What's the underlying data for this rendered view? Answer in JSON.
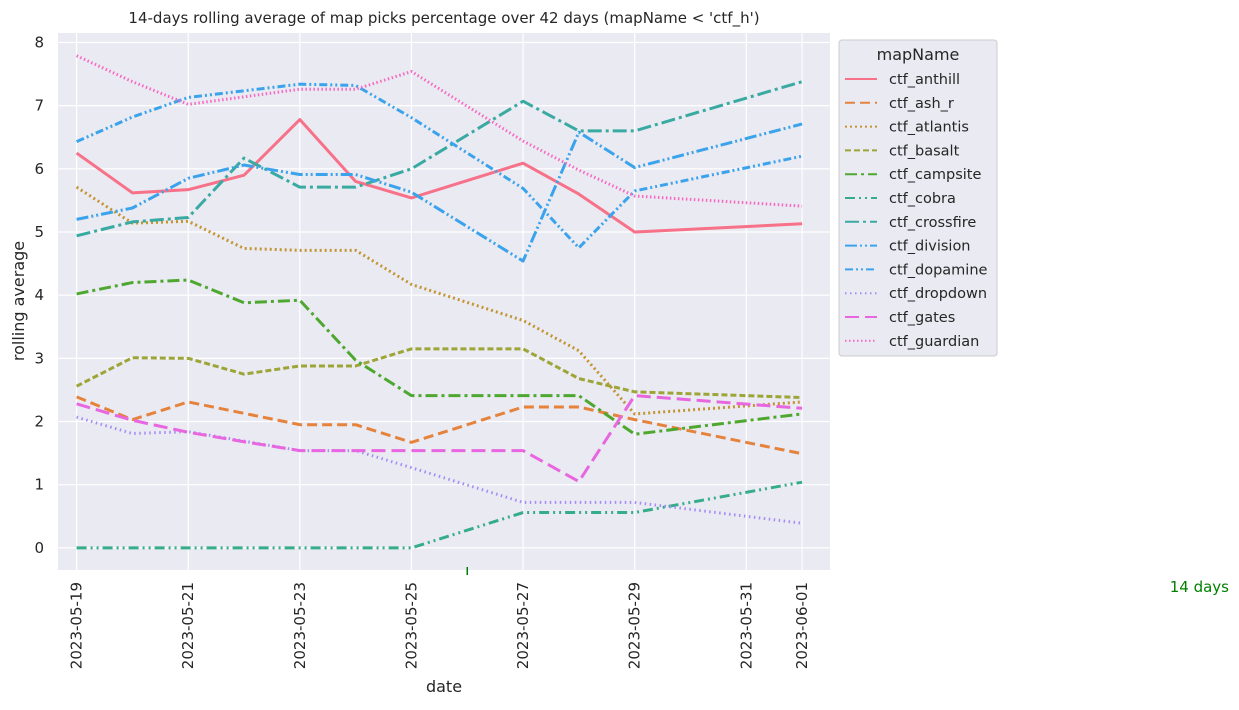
{
  "chart_data": {
    "type": "line",
    "title": "14-days rolling average of map picks percentage over 42 days (mapName < 'ctf_h')",
    "xlabel": "date",
    "ylabel": "rolling average",
    "ylim": [
      -0.35,
      8.15
    ],
    "xlim": [
      "2023-05-18T16:00",
      "2023-06-01T12:00"
    ],
    "yticks": [
      0,
      1,
      2,
      3,
      4,
      5,
      6,
      7,
      8
    ],
    "xticks": [
      "2023-05-19",
      "2023-05-21",
      "2023-05-23",
      "2023-05-25",
      "2023-05-27",
      "2023-05-29",
      "2023-05-31",
      "2023-06-01"
    ],
    "grid": true,
    "style": "seaborn-darkgrid",
    "legend": {
      "title": "mapName",
      "placement": "outside-right-top"
    },
    "annotation": {
      "text": "14 days",
      "color": "#008000",
      "marker_date": "2023-05-26"
    },
    "series": [
      {
        "name": "ctf_anthill",
        "color": "#f77189",
        "dash": "solid",
        "points": [
          [
            "2023-05-19",
            6.25
          ],
          [
            "2023-05-20",
            5.62
          ],
          [
            "2023-05-21",
            5.67
          ],
          [
            "2023-05-22",
            5.9
          ],
          [
            "2023-05-23",
            6.78
          ],
          [
            "2023-05-24",
            5.8
          ],
          [
            "2023-05-25",
            5.54
          ],
          [
            "2023-05-27",
            6.09
          ],
          [
            "2023-05-28",
            5.6
          ],
          [
            "2023-05-29",
            5.0
          ],
          [
            "2023-06-01",
            5.13
          ]
        ]
      },
      {
        "name": "ctf_ash_r",
        "color": "#e5823c",
        "dash": "dashed",
        "points": [
          [
            "2023-05-19",
            2.39
          ],
          [
            "2023-05-20",
            2.03
          ],
          [
            "2023-05-21",
            2.31
          ],
          [
            "2023-05-23",
            1.95
          ],
          [
            "2023-05-24",
            1.95
          ],
          [
            "2023-05-25",
            1.67
          ],
          [
            "2023-05-27",
            2.23
          ],
          [
            "2023-05-28",
            2.23
          ],
          [
            "2023-05-29",
            2.03
          ],
          [
            "2023-06-01",
            1.49
          ]
        ]
      },
      {
        "name": "ctf_atlantis",
        "color": "#c39532",
        "dash": "dotted",
        "points": [
          [
            "2023-05-19",
            5.71
          ],
          [
            "2023-05-20",
            5.14
          ],
          [
            "2023-05-21",
            5.17
          ],
          [
            "2023-05-22",
            4.74
          ],
          [
            "2023-05-23",
            4.71
          ],
          [
            "2023-05-24",
            4.71
          ],
          [
            "2023-05-25",
            4.17
          ],
          [
            "2023-05-27",
            3.6
          ],
          [
            "2023-05-28",
            3.12
          ],
          [
            "2023-05-29",
            2.12
          ],
          [
            "2023-06-01",
            2.31
          ]
        ]
      },
      {
        "name": "ctf_basalt",
        "color": "#9ea537",
        "dash": "densely-dashed",
        "points": [
          [
            "2023-05-19",
            2.56
          ],
          [
            "2023-05-20",
            3.01
          ],
          [
            "2023-05-21",
            3.0
          ],
          [
            "2023-05-22",
            2.75
          ],
          [
            "2023-05-23",
            2.88
          ],
          [
            "2023-05-24",
            2.88
          ],
          [
            "2023-05-25",
            3.15
          ],
          [
            "2023-05-27",
            3.15
          ],
          [
            "2023-05-28",
            2.68
          ],
          [
            "2023-05-29",
            2.47
          ],
          [
            "2023-06-01",
            2.38
          ]
        ]
      },
      {
        "name": "ctf_campsite",
        "color": "#4ea830",
        "dash": "dashdot",
        "points": [
          [
            "2023-05-19",
            4.02
          ],
          [
            "2023-05-20",
            4.2
          ],
          [
            "2023-05-21",
            4.24
          ],
          [
            "2023-05-22",
            3.88
          ],
          [
            "2023-05-23",
            3.92
          ],
          [
            "2023-05-24",
            2.97
          ],
          [
            "2023-05-25",
            2.41
          ],
          [
            "2023-05-27",
            2.41
          ],
          [
            "2023-05-28",
            2.41
          ],
          [
            "2023-05-29",
            1.8
          ],
          [
            "2023-06-01",
            2.12
          ]
        ]
      },
      {
        "name": "ctf_cobra",
        "color": "#36ad8a",
        "dash": "dash-dot-dot",
        "points": [
          [
            "2023-05-19",
            0.0
          ],
          [
            "2023-05-21",
            0.0
          ],
          [
            "2023-05-23",
            0.0
          ],
          [
            "2023-05-25",
            0.0
          ],
          [
            "2023-05-27",
            0.56
          ],
          [
            "2023-05-28",
            0.56
          ],
          [
            "2023-05-29",
            0.56
          ],
          [
            "2023-06-01",
            1.04
          ]
        ]
      },
      {
        "name": "ctf_crossfire",
        "color": "#38aaa2",
        "dash": "long-dashdot",
        "points": [
          [
            "2023-05-19",
            4.94
          ],
          [
            "2023-05-20",
            5.16
          ],
          [
            "2023-05-21",
            5.23
          ],
          [
            "2023-05-22",
            6.17
          ],
          [
            "2023-05-23",
            5.71
          ],
          [
            "2023-05-24",
            5.71
          ],
          [
            "2023-05-25",
            6.0
          ],
          [
            "2023-05-27",
            7.07
          ],
          [
            "2023-05-28",
            6.6
          ],
          [
            "2023-05-29",
            6.6
          ],
          [
            "2023-06-01",
            7.38
          ]
        ]
      },
      {
        "name": "ctf_division",
        "color": "#3ba3ec",
        "dash": "dash-dot-dot-long",
        "points": [
          [
            "2023-05-19",
            5.2
          ],
          [
            "2023-05-20",
            5.38
          ],
          [
            "2023-05-21",
            5.85
          ],
          [
            "2023-05-22",
            6.06
          ],
          [
            "2023-05-23",
            5.91
          ],
          [
            "2023-05-24",
            5.91
          ],
          [
            "2023-05-25",
            5.63
          ],
          [
            "2023-05-27",
            4.54
          ],
          [
            "2023-05-28",
            6.58
          ],
          [
            "2023-05-29",
            6.02
          ],
          [
            "2023-06-01",
            6.71
          ]
        ]
      },
      {
        "name": "ctf_dopamine",
        "color": "#3ba3ec",
        "dash": "dash-dot-dot-short",
        "points": [
          [
            "2023-05-19",
            6.43
          ],
          [
            "2023-05-20",
            6.82
          ],
          [
            "2023-05-21",
            7.13
          ],
          [
            "2023-05-23",
            7.34
          ],
          [
            "2023-05-24",
            7.32
          ],
          [
            "2023-05-25",
            6.81
          ],
          [
            "2023-05-27",
            5.69
          ],
          [
            "2023-05-28",
            4.75
          ],
          [
            "2023-05-29",
            5.65
          ],
          [
            "2023-06-01",
            6.2
          ]
        ]
      },
      {
        "name": "ctf_dropdown",
        "color": "#a48cf4",
        "dash": "short-dotted",
        "points": [
          [
            "2023-05-19",
            2.07
          ],
          [
            "2023-05-20",
            1.81
          ],
          [
            "2023-05-21",
            1.84
          ],
          [
            "2023-05-23",
            1.54
          ],
          [
            "2023-05-24",
            1.54
          ],
          [
            "2023-05-25",
            1.27
          ],
          [
            "2023-05-27",
            0.72
          ],
          [
            "2023-05-28",
            0.72
          ],
          [
            "2023-05-29",
            0.72
          ],
          [
            "2023-06-01",
            0.39
          ]
        ]
      },
      {
        "name": "ctf_gates",
        "color": "#e866e0",
        "dash": "long-dashed",
        "points": [
          [
            "2023-05-19",
            2.28
          ],
          [
            "2023-05-20",
            2.02
          ],
          [
            "2023-05-21",
            1.83
          ],
          [
            "2023-05-22",
            1.68
          ],
          [
            "2023-05-23",
            1.54
          ],
          [
            "2023-05-24",
            1.54
          ],
          [
            "2023-05-25",
            1.54
          ],
          [
            "2023-05-27",
            1.54
          ],
          [
            "2023-05-28",
            1.05
          ],
          [
            "2023-05-29",
            2.41
          ],
          [
            "2023-06-01",
            2.21
          ]
        ]
      },
      {
        "name": "ctf_guardian",
        "color": "#f668c2",
        "dash": "fine-dotted",
        "points": [
          [
            "2023-05-19",
            7.79
          ],
          [
            "2023-05-20",
            7.38
          ],
          [
            "2023-05-21",
            7.02
          ],
          [
            "2023-05-23",
            7.26
          ],
          [
            "2023-05-24",
            7.26
          ],
          [
            "2023-05-25",
            7.54
          ],
          [
            "2023-05-27",
            6.44
          ],
          [
            "2023-05-28",
            5.98
          ],
          [
            "2023-05-29",
            5.57
          ],
          [
            "2023-06-01",
            5.41
          ]
        ]
      }
    ]
  }
}
